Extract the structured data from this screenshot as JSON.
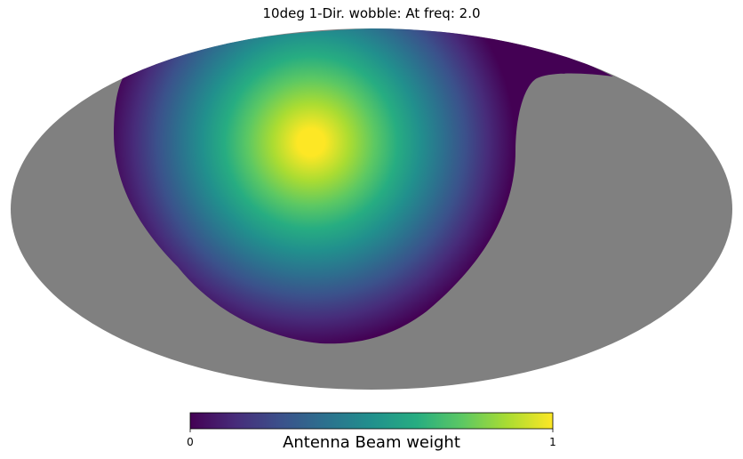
{
  "chart_data": {
    "type": "heatmap",
    "projection": "mollweide",
    "title": "10deg 1-Dir. wobble: At freq: 2.0",
    "colorbar": {
      "label": "Antenna Beam weight",
      "min": 0,
      "max": 1,
      "tick_labels": [
        "0",
        "1"
      ],
      "colormap": "viridis"
    },
    "beam": {
      "peak_weight": 1.0,
      "edge_weight": 0.0
    },
    "masked_color": "#808080",
    "grid": false
  }
}
